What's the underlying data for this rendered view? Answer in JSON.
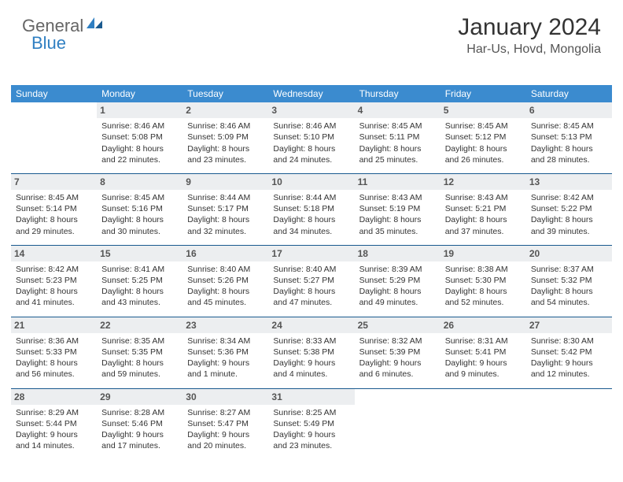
{
  "logo": {
    "part1": "General",
    "part2": "Blue"
  },
  "title": "January 2024",
  "location": "Har-Us, Hovd, Mongolia",
  "colors": {
    "header_bg": "#3b8bcf",
    "row_divider": "#1a5a8f",
    "daynum_bg": "#eceef0",
    "logo_accent": "#2f7fc2"
  },
  "weekdays": [
    "Sunday",
    "Monday",
    "Tuesday",
    "Wednesday",
    "Thursday",
    "Friday",
    "Saturday"
  ],
  "weeks": [
    [
      null,
      {
        "n": "1",
        "sr": "Sunrise: 8:46 AM",
        "ss": "Sunset: 5:08 PM",
        "d1": "Daylight: 8 hours",
        "d2": "and 22 minutes."
      },
      {
        "n": "2",
        "sr": "Sunrise: 8:46 AM",
        "ss": "Sunset: 5:09 PM",
        "d1": "Daylight: 8 hours",
        "d2": "and 23 minutes."
      },
      {
        "n": "3",
        "sr": "Sunrise: 8:46 AM",
        "ss": "Sunset: 5:10 PM",
        "d1": "Daylight: 8 hours",
        "d2": "and 24 minutes."
      },
      {
        "n": "4",
        "sr": "Sunrise: 8:45 AM",
        "ss": "Sunset: 5:11 PM",
        "d1": "Daylight: 8 hours",
        "d2": "and 25 minutes."
      },
      {
        "n": "5",
        "sr": "Sunrise: 8:45 AM",
        "ss": "Sunset: 5:12 PM",
        "d1": "Daylight: 8 hours",
        "d2": "and 26 minutes."
      },
      {
        "n": "6",
        "sr": "Sunrise: 8:45 AM",
        "ss": "Sunset: 5:13 PM",
        "d1": "Daylight: 8 hours",
        "d2": "and 28 minutes."
      }
    ],
    [
      {
        "n": "7",
        "sr": "Sunrise: 8:45 AM",
        "ss": "Sunset: 5:14 PM",
        "d1": "Daylight: 8 hours",
        "d2": "and 29 minutes."
      },
      {
        "n": "8",
        "sr": "Sunrise: 8:45 AM",
        "ss": "Sunset: 5:16 PM",
        "d1": "Daylight: 8 hours",
        "d2": "and 30 minutes."
      },
      {
        "n": "9",
        "sr": "Sunrise: 8:44 AM",
        "ss": "Sunset: 5:17 PM",
        "d1": "Daylight: 8 hours",
        "d2": "and 32 minutes."
      },
      {
        "n": "10",
        "sr": "Sunrise: 8:44 AM",
        "ss": "Sunset: 5:18 PM",
        "d1": "Daylight: 8 hours",
        "d2": "and 34 minutes."
      },
      {
        "n": "11",
        "sr": "Sunrise: 8:43 AM",
        "ss": "Sunset: 5:19 PM",
        "d1": "Daylight: 8 hours",
        "d2": "and 35 minutes."
      },
      {
        "n": "12",
        "sr": "Sunrise: 8:43 AM",
        "ss": "Sunset: 5:21 PM",
        "d1": "Daylight: 8 hours",
        "d2": "and 37 minutes."
      },
      {
        "n": "13",
        "sr": "Sunrise: 8:42 AM",
        "ss": "Sunset: 5:22 PM",
        "d1": "Daylight: 8 hours",
        "d2": "and 39 minutes."
      }
    ],
    [
      {
        "n": "14",
        "sr": "Sunrise: 8:42 AM",
        "ss": "Sunset: 5:23 PM",
        "d1": "Daylight: 8 hours",
        "d2": "and 41 minutes."
      },
      {
        "n": "15",
        "sr": "Sunrise: 8:41 AM",
        "ss": "Sunset: 5:25 PM",
        "d1": "Daylight: 8 hours",
        "d2": "and 43 minutes."
      },
      {
        "n": "16",
        "sr": "Sunrise: 8:40 AM",
        "ss": "Sunset: 5:26 PM",
        "d1": "Daylight: 8 hours",
        "d2": "and 45 minutes."
      },
      {
        "n": "17",
        "sr": "Sunrise: 8:40 AM",
        "ss": "Sunset: 5:27 PM",
        "d1": "Daylight: 8 hours",
        "d2": "and 47 minutes."
      },
      {
        "n": "18",
        "sr": "Sunrise: 8:39 AM",
        "ss": "Sunset: 5:29 PM",
        "d1": "Daylight: 8 hours",
        "d2": "and 49 minutes."
      },
      {
        "n": "19",
        "sr": "Sunrise: 8:38 AM",
        "ss": "Sunset: 5:30 PM",
        "d1": "Daylight: 8 hours",
        "d2": "and 52 minutes."
      },
      {
        "n": "20",
        "sr": "Sunrise: 8:37 AM",
        "ss": "Sunset: 5:32 PM",
        "d1": "Daylight: 8 hours",
        "d2": "and 54 minutes."
      }
    ],
    [
      {
        "n": "21",
        "sr": "Sunrise: 8:36 AM",
        "ss": "Sunset: 5:33 PM",
        "d1": "Daylight: 8 hours",
        "d2": "and 56 minutes."
      },
      {
        "n": "22",
        "sr": "Sunrise: 8:35 AM",
        "ss": "Sunset: 5:35 PM",
        "d1": "Daylight: 8 hours",
        "d2": "and 59 minutes."
      },
      {
        "n": "23",
        "sr": "Sunrise: 8:34 AM",
        "ss": "Sunset: 5:36 PM",
        "d1": "Daylight: 9 hours",
        "d2": "and 1 minute."
      },
      {
        "n": "24",
        "sr": "Sunrise: 8:33 AM",
        "ss": "Sunset: 5:38 PM",
        "d1": "Daylight: 9 hours",
        "d2": "and 4 minutes."
      },
      {
        "n": "25",
        "sr": "Sunrise: 8:32 AM",
        "ss": "Sunset: 5:39 PM",
        "d1": "Daylight: 9 hours",
        "d2": "and 6 minutes."
      },
      {
        "n": "26",
        "sr": "Sunrise: 8:31 AM",
        "ss": "Sunset: 5:41 PM",
        "d1": "Daylight: 9 hours",
        "d2": "and 9 minutes."
      },
      {
        "n": "27",
        "sr": "Sunrise: 8:30 AM",
        "ss": "Sunset: 5:42 PM",
        "d1": "Daylight: 9 hours",
        "d2": "and 12 minutes."
      }
    ],
    [
      {
        "n": "28",
        "sr": "Sunrise: 8:29 AM",
        "ss": "Sunset: 5:44 PM",
        "d1": "Daylight: 9 hours",
        "d2": "and 14 minutes."
      },
      {
        "n": "29",
        "sr": "Sunrise: 8:28 AM",
        "ss": "Sunset: 5:46 PM",
        "d1": "Daylight: 9 hours",
        "d2": "and 17 minutes."
      },
      {
        "n": "30",
        "sr": "Sunrise: 8:27 AM",
        "ss": "Sunset: 5:47 PM",
        "d1": "Daylight: 9 hours",
        "d2": "and 20 minutes."
      },
      {
        "n": "31",
        "sr": "Sunrise: 8:25 AM",
        "ss": "Sunset: 5:49 PM",
        "d1": "Daylight: 9 hours",
        "d2": "and 23 minutes."
      },
      null,
      null,
      null
    ]
  ]
}
